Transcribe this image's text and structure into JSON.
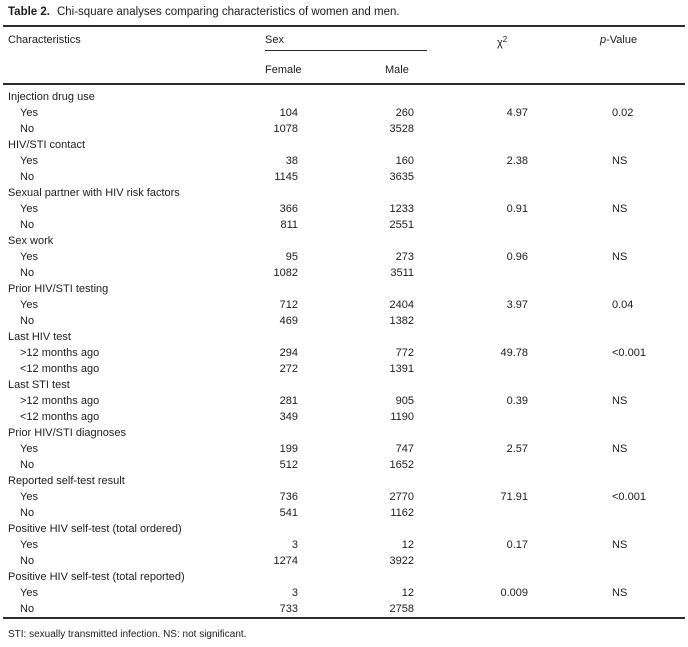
{
  "title": {
    "prefix": "Table 2.",
    "text": "Chi-square analyses comparing characteristics of women and men."
  },
  "header": {
    "characteristics": "Characteristics",
    "sex": "Sex",
    "chi_symbol": "χ",
    "chi_sup": "2",
    "p_italic": "p",
    "p_rest": "-Value",
    "female": "Female",
    "male": "Male"
  },
  "rows": [
    {
      "type": "category",
      "label": "Injection drug use",
      "female": "",
      "male": "",
      "chi": "",
      "p": ""
    },
    {
      "type": "data",
      "label": "Yes",
      "female": "104",
      "male": "260",
      "chi": "4.97",
      "p": "0.02"
    },
    {
      "type": "data",
      "label": "No",
      "female": "1078",
      "male": "3528",
      "chi": "",
      "p": ""
    },
    {
      "type": "category",
      "label": "HIV/STI contact",
      "female": "",
      "male": "",
      "chi": "",
      "p": ""
    },
    {
      "type": "data",
      "label": "Yes",
      "female": "38",
      "male": "160",
      "chi": "2.38",
      "p": "NS"
    },
    {
      "type": "data",
      "label": "No",
      "female": "1145",
      "male": "3635",
      "chi": "",
      "p": ""
    },
    {
      "type": "category",
      "label": "Sexual partner with HIV risk factors",
      "female": "",
      "male": "",
      "chi": "",
      "p": ""
    },
    {
      "type": "data",
      "label": "Yes",
      "female": "366",
      "male": "1233",
      "chi": "0.91",
      "p": "NS"
    },
    {
      "type": "data",
      "label": "No",
      "female": "811",
      "male": "2551",
      "chi": "",
      "p": ""
    },
    {
      "type": "category",
      "label": "Sex work",
      "female": "",
      "male": "",
      "chi": "",
      "p": ""
    },
    {
      "type": "data",
      "label": "Yes",
      "female": "95",
      "male": "273",
      "chi": "0.96",
      "p": "NS"
    },
    {
      "type": "data",
      "label": "No",
      "female": "1082",
      "male": "3511",
      "chi": "",
      "p": ""
    },
    {
      "type": "category",
      "label": "Prior HIV/STI testing",
      "female": "",
      "male": "",
      "chi": "",
      "p": ""
    },
    {
      "type": "data",
      "label": "Yes",
      "female": "712",
      "male": "2404",
      "chi": "3.97",
      "p": "0.04"
    },
    {
      "type": "data",
      "label": "No",
      "female": "469",
      "male": "1382",
      "chi": "",
      "p": ""
    },
    {
      "type": "category",
      "label": "Last HIV test",
      "female": "",
      "male": "",
      "chi": "",
      "p": ""
    },
    {
      "type": "data",
      "label": ">12 months ago",
      "female": "294",
      "male": "772",
      "chi": "49.78",
      "p": "<0.001"
    },
    {
      "type": "data",
      "label": "<12 months ago",
      "female": "272",
      "male": "1391",
      "chi": "",
      "p": ""
    },
    {
      "type": "category",
      "label": "Last STI test",
      "female": "",
      "male": "",
      "chi": "",
      "p": ""
    },
    {
      "type": "data",
      "label": ">12 months ago",
      "female": "281",
      "male": "905",
      "chi": "0.39",
      "p": "NS"
    },
    {
      "type": "data",
      "label": "<12 months ago",
      "female": "349",
      "male": "1190",
      "chi": "",
      "p": ""
    },
    {
      "type": "category",
      "label": "Prior HIV/STI diagnoses",
      "female": "",
      "male": "",
      "chi": "",
      "p": ""
    },
    {
      "type": "data",
      "label": "Yes",
      "female": "199",
      "male": "747",
      "chi": "2.57",
      "p": "NS"
    },
    {
      "type": "data",
      "label": "No",
      "female": "512",
      "male": "1652",
      "chi": "",
      "p": ""
    },
    {
      "type": "category",
      "label": "Reported self-test result",
      "female": "",
      "male": "",
      "chi": "",
      "p": ""
    },
    {
      "type": "data",
      "label": "Yes",
      "female": "736",
      "male": "2770",
      "chi": "71.91",
      "p": "<0.001"
    },
    {
      "type": "data",
      "label": "No",
      "female": "541",
      "male": "1162",
      "chi": "",
      "p": ""
    },
    {
      "type": "category",
      "label": "Positive HIV self-test (total ordered)",
      "female": "",
      "male": "",
      "chi": "",
      "p": ""
    },
    {
      "type": "data",
      "label": "Yes",
      "female": "3",
      "male": "12",
      "chi": "0.17",
      "p": "NS"
    },
    {
      "type": "data",
      "label": "No",
      "female": "1274",
      "male": "3922",
      "chi": "",
      "p": ""
    },
    {
      "type": "category",
      "label": "Positive HIV self-test (total reported)",
      "female": "",
      "male": "",
      "chi": "",
      "p": ""
    },
    {
      "type": "data",
      "label": "Yes",
      "female": "3",
      "male": "12",
      "chi": "0.009",
      "p": "NS"
    },
    {
      "type": "data",
      "label": "No",
      "female": "733",
      "male": "2758",
      "chi": "",
      "p": ""
    }
  ],
  "footnote": "STI: sexually transmitted infection. NS: not significant.",
  "colors": {
    "text": "#1c1c1c",
    "rule": "#2b2b2b",
    "background": "#ffffff"
  }
}
